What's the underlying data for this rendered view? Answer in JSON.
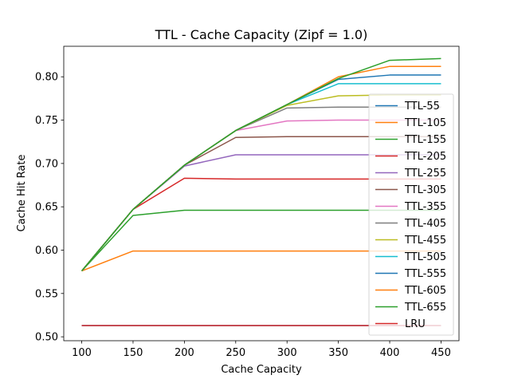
{
  "chart_data": {
    "type": "line",
    "title": "TTL - Cache Capacity (Zipf = 1.0)",
    "xlabel": "Cache Capacity",
    "ylabel": "Cache Hit Rate",
    "x": [
      100,
      150,
      200,
      250,
      300,
      350,
      400,
      450
    ],
    "xticks": [
      "100",
      "150",
      "200",
      "250",
      "300",
      "350",
      "400",
      "450"
    ],
    "yticks": [
      "0.50",
      "0.55",
      "0.60",
      "0.65",
      "0.70",
      "0.75",
      "0.80"
    ],
    "xlim": [
      82.5,
      467.5
    ],
    "ylim": [
      0.4955,
      0.8352
    ],
    "grid": false,
    "legend_position": "lower-right",
    "series": [
      {
        "name": "TTL-55",
        "color": "#1f77b4",
        "values": [
          0.513,
          0.513,
          0.513,
          0.513,
          0.513,
          0.513,
          0.513,
          0.513
        ]
      },
      {
        "name": "TTL-105",
        "color": "#ff7f0e",
        "values": [
          0.576,
          0.599,
          0.599,
          0.599,
          0.599,
          0.599,
          0.599,
          0.599
        ]
      },
      {
        "name": "TTL-155",
        "color": "#2ca02c",
        "values": [
          0.576,
          0.64,
          0.646,
          0.646,
          0.646,
          0.646,
          0.646,
          0.646
        ]
      },
      {
        "name": "TTL-205",
        "color": "#d62728",
        "values": [
          0.576,
          0.647,
          0.683,
          0.682,
          0.682,
          0.682,
          0.682,
          0.682
        ]
      },
      {
        "name": "TTL-255",
        "color": "#9467bd",
        "values": [
          0.576,
          0.647,
          0.697,
          0.71,
          0.71,
          0.71,
          0.71,
          0.71
        ]
      },
      {
        "name": "TTL-305",
        "color": "#8c564b",
        "values": [
          0.576,
          0.647,
          0.698,
          0.73,
          0.731,
          0.731,
          0.731,
          0.731
        ]
      },
      {
        "name": "TTL-355",
        "color": "#e377c2",
        "values": [
          0.576,
          0.647,
          0.698,
          0.738,
          0.749,
          0.75,
          0.75,
          0.75
        ]
      },
      {
        "name": "TTL-405",
        "color": "#7f7f7f",
        "values": [
          0.576,
          0.647,
          0.698,
          0.738,
          0.764,
          0.765,
          0.765,
          0.765
        ]
      },
      {
        "name": "TTL-455",
        "color": "#bcbd22",
        "values": [
          0.576,
          0.647,
          0.698,
          0.738,
          0.767,
          0.778,
          0.779,
          0.779
        ]
      },
      {
        "name": "TTL-505",
        "color": "#17becf",
        "values": [
          0.576,
          0.647,
          0.698,
          0.738,
          0.768,
          0.792,
          0.792,
          0.792
        ]
      },
      {
        "name": "TTL-555",
        "color": "#1f77b4",
        "values": [
          0.576,
          0.647,
          0.698,
          0.738,
          0.768,
          0.797,
          0.802,
          0.802
        ]
      },
      {
        "name": "TTL-605",
        "color": "#ff7f0e",
        "values": [
          0.576,
          0.647,
          0.698,
          0.738,
          0.768,
          0.8,
          0.812,
          0.812
        ]
      },
      {
        "name": "TTL-655",
        "color": "#2ca02c",
        "values": [
          0.576,
          0.647,
          0.698,
          0.738,
          0.768,
          0.798,
          0.819,
          0.821
        ]
      },
      {
        "name": "LRU",
        "color": "#d62728",
        "values": [
          0.513,
          0.513,
          0.513,
          0.513,
          0.513,
          0.513,
          0.513,
          0.513
        ]
      }
    ]
  }
}
